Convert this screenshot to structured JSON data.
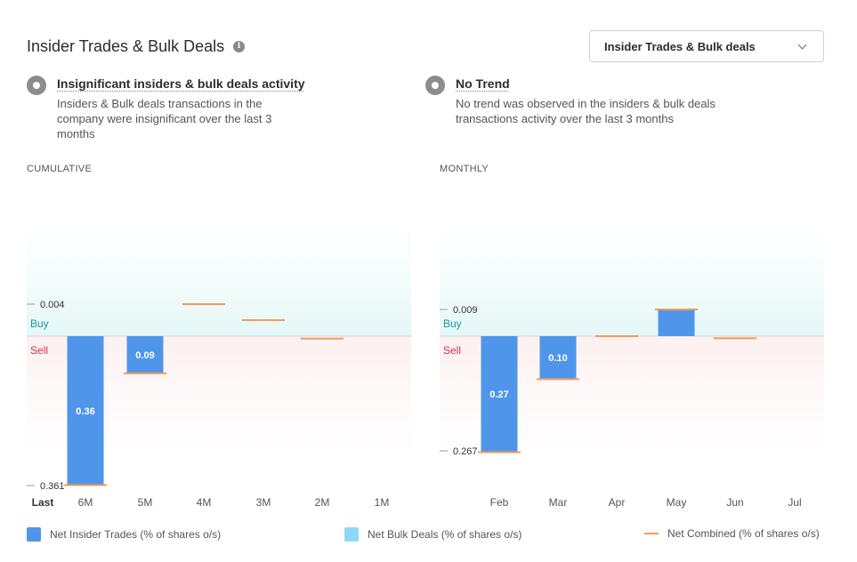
{
  "header": {
    "title": "Insider Trades & Bulk Deals",
    "dropdown_label": "Insider Trades & Bulk deals"
  },
  "insights": [
    {
      "title": "Insignificant insiders & bulk deals activity",
      "text": "Insiders & Bulk deals transactions in the company were insignificant over the last 3 months"
    },
    {
      "title": "No Trend",
      "text": "No trend was observed in the insiders & bulk deals transactions activity over the last 3 months"
    }
  ],
  "colors": {
    "insider": "#4f96ea",
    "bulk": "#8ed9f8",
    "combined": "#f29b58",
    "buy": "#1a9aa0",
    "sell": "#d6314b"
  },
  "labels": {
    "buy": "Buy",
    "sell": "Sell"
  },
  "legend": {
    "insider": "Net Insider Trades (% of shares o/s)",
    "bulk": "Net Bulk Deals (% of shares o/s)",
    "combined": "Net Combined (% of shares o/s)"
  },
  "chart_data": [
    {
      "type": "bar",
      "title": "CUMULATIVE",
      "categories": [
        "Last",
        "6M",
        "5M",
        "4M",
        "3M",
        "2M",
        "1M"
      ],
      "ymax_label": "0.004",
      "ymin_label": "0.361",
      "ylim": [
        -0.361,
        0.004
      ],
      "series": [
        {
          "name": "Net Insider Trades (% of shares o/s)",
          "values": [
            null,
            -0.36,
            -0.09,
            0,
            0,
            0,
            null
          ]
        },
        {
          "name": "Net Combined (% of shares o/s)",
          "values": [
            null,
            -0.36,
            -0.09,
            0.004,
            0.002,
            -0.006,
            null
          ]
        }
      ],
      "data_labels": [
        "",
        "0.36",
        "0.09",
        "",
        "",
        "",
        ""
      ]
    },
    {
      "type": "bar",
      "title": "MONTHLY",
      "categories": [
        "Feb",
        "Mar",
        "Apr",
        "May",
        "Jun",
        "Jul"
      ],
      "ymax_label": "0.009",
      "ymin_label": "0.267",
      "ylim": [
        -0.267,
        0.009
      ],
      "series": [
        {
          "name": "Net Insider Trades (% of shares o/s)",
          "values": [
            -0.27,
            -0.1,
            0,
            0.009,
            0,
            null
          ]
        },
        {
          "name": "Net Combined (% of shares o/s)",
          "values": [
            -0.27,
            -0.1,
            0,
            0.009,
            -0.005,
            null
          ]
        }
      ],
      "data_labels": [
        "0.27",
        "0.10",
        "",
        "",
        "",
        ""
      ]
    }
  ]
}
